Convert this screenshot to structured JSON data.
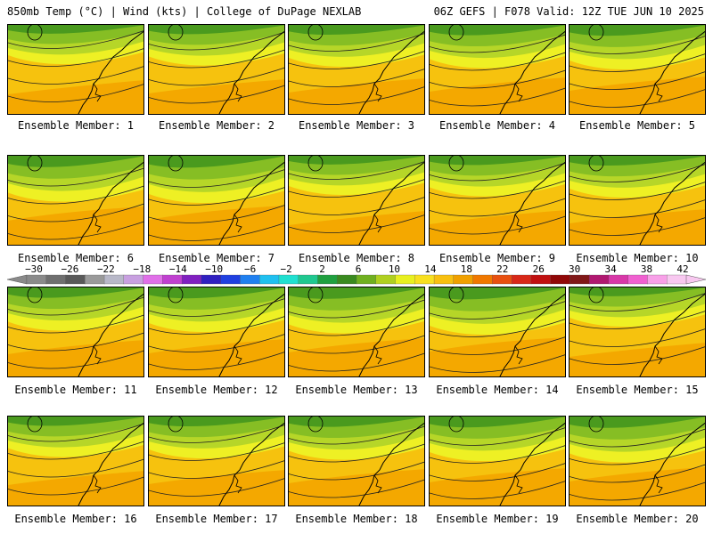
{
  "header": {
    "left": "850mb Temp (°C) | Wind (kts) | College of DuPage NEXLAB",
    "right": "06Z GEFS | F078 Valid: 12Z TUE JUN 10 2025"
  },
  "members": [
    {
      "label": "Ensemble Member: 1"
    },
    {
      "label": "Ensemble Member: 2"
    },
    {
      "label": "Ensemble Member: 3"
    },
    {
      "label": "Ensemble Member: 4"
    },
    {
      "label": "Ensemble Member: 5"
    },
    {
      "label": "Ensemble Member: 6"
    },
    {
      "label": "Ensemble Member: 7"
    },
    {
      "label": "Ensemble Member: 8"
    },
    {
      "label": "Ensemble Member: 9"
    },
    {
      "label": "Ensemble Member: 10"
    },
    {
      "label": "Ensemble Member: 11"
    },
    {
      "label": "Ensemble Member: 12"
    },
    {
      "label": "Ensemble Member: 13"
    },
    {
      "label": "Ensemble Member: 14"
    },
    {
      "label": "Ensemble Member: 15"
    },
    {
      "label": "Ensemble Member: 16"
    },
    {
      "label": "Ensemble Member: 17"
    },
    {
      "label": "Ensemble Member: 18"
    },
    {
      "label": "Ensemble Member: 19"
    },
    {
      "label": "Ensemble Member: 20"
    }
  ],
  "colorbar": {
    "labels": [
      "−30",
      "−26",
      "−22",
      "−18",
      "−14",
      "−10",
      "−6",
      "−2",
      "2",
      "6",
      "10",
      "14",
      "18",
      "22",
      "26",
      "30",
      "34",
      "38",
      "42"
    ],
    "colors": [
      "#8a8a8a",
      "#6f6f6f",
      "#595959",
      "#9a9a9a",
      "#b8b8c8",
      "#c8a0e0",
      "#e070e8",
      "#c040d0",
      "#8020c0",
      "#3020c0",
      "#2040e0",
      "#2080f0",
      "#20c0f0",
      "#20e0d0",
      "#20c890",
      "#20a040",
      "#3a8a20",
      "#70b020",
      "#b0d020",
      "#e8f020",
      "#f8e020",
      "#f8c010",
      "#f0a000",
      "#f07800",
      "#e85010",
      "#d82818",
      "#c01010",
      "#900808",
      "#801818",
      "#b01870",
      "#d838a8",
      "#f060d0",
      "#f8a0e8",
      "#f8c8f0"
    ]
  }
}
